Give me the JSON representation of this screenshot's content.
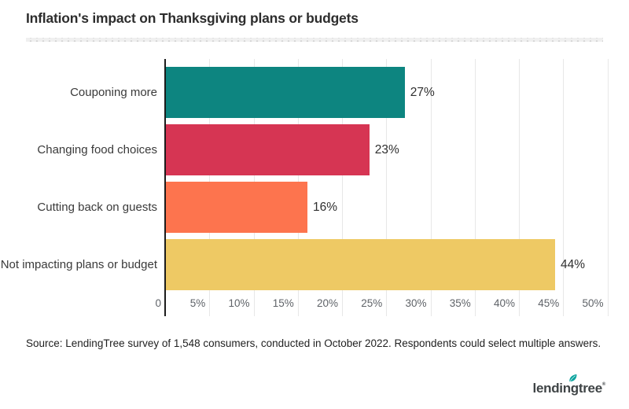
{
  "title": "Inflation's impact on Thanksgiving plans or budgets",
  "chart_data": {
    "type": "bar",
    "orientation": "horizontal",
    "title": "Inflation's impact on Thanksgiving plans or budgets",
    "categories": [
      "Couponing more",
      "Changing food choices",
      "Cutting back on guests",
      "Not impacting plans or budget"
    ],
    "values": [
      27,
      23,
      16,
      44
    ],
    "value_labels": [
      "27%",
      "23%",
      "16%",
      "44%"
    ],
    "bar_colors": [
      "#0d8580",
      "#d63553",
      "#fd744e",
      "#eec964"
    ],
    "xlabel": "",
    "ylabel": "",
    "xlim": [
      0,
      50
    ],
    "x_tick_step": 5,
    "x_tick_labels": [
      "0",
      "5%",
      "10%",
      "15%",
      "20%",
      "25%",
      "30%",
      "35%",
      "40%",
      "45%",
      "50%"
    ],
    "grid": true,
    "legend": false,
    "axis_color": "#1c1c1c",
    "gridline_color": "#e7e7e7"
  },
  "source_note": "Source: LendingTree survey of 1,548 consumers, conducted in October 2022. Respondents could select multiple answers.",
  "logo": {
    "text": "lendingtree",
    "reg_mark": "®",
    "text_color": "#3f4446",
    "leaf_color": "#0aa39e"
  }
}
